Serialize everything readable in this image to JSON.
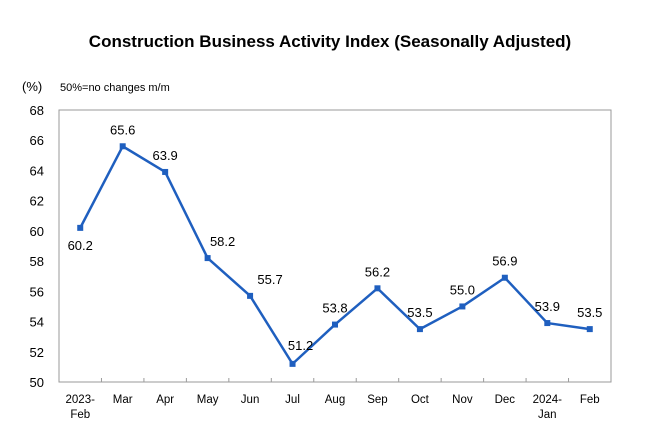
{
  "chart_data": {
    "type": "line",
    "title": "Construction Business Activity Index (Seasonally Adjusted)",
    "ylabel": "(%)",
    "annotation": "50%=no changes m/m",
    "categories": [
      [
        "2023-",
        "Feb"
      ],
      [
        "Mar"
      ],
      [
        "Apr"
      ],
      [
        "May"
      ],
      [
        "Jun"
      ],
      [
        "Jul"
      ],
      [
        "Aug"
      ],
      [
        "Sep"
      ],
      [
        "Oct"
      ],
      [
        "Nov"
      ],
      [
        "Dec"
      ],
      [
        "2024-",
        "Jan"
      ],
      [
        "Feb"
      ]
    ],
    "values": [
      60.2,
      65.6,
      63.9,
      58.2,
      55.7,
      51.2,
      53.8,
      56.2,
      53.5,
      55.0,
      56.9,
      53.9,
      53.5
    ],
    "value_labels": [
      "60.2",
      "65.6",
      "63.9",
      "58.2",
      "55.7",
      "51.2",
      "53.8",
      "56.2",
      "53.5",
      "55.0",
      "56.9",
      "53.9",
      "53.5"
    ],
    "ylim": [
      50,
      68
    ],
    "yticks": [
      50,
      52,
      54,
      56,
      58,
      60,
      62,
      64,
      66,
      68
    ],
    "grid": false,
    "legend": "none",
    "line_color": "#1f5fbf"
  }
}
